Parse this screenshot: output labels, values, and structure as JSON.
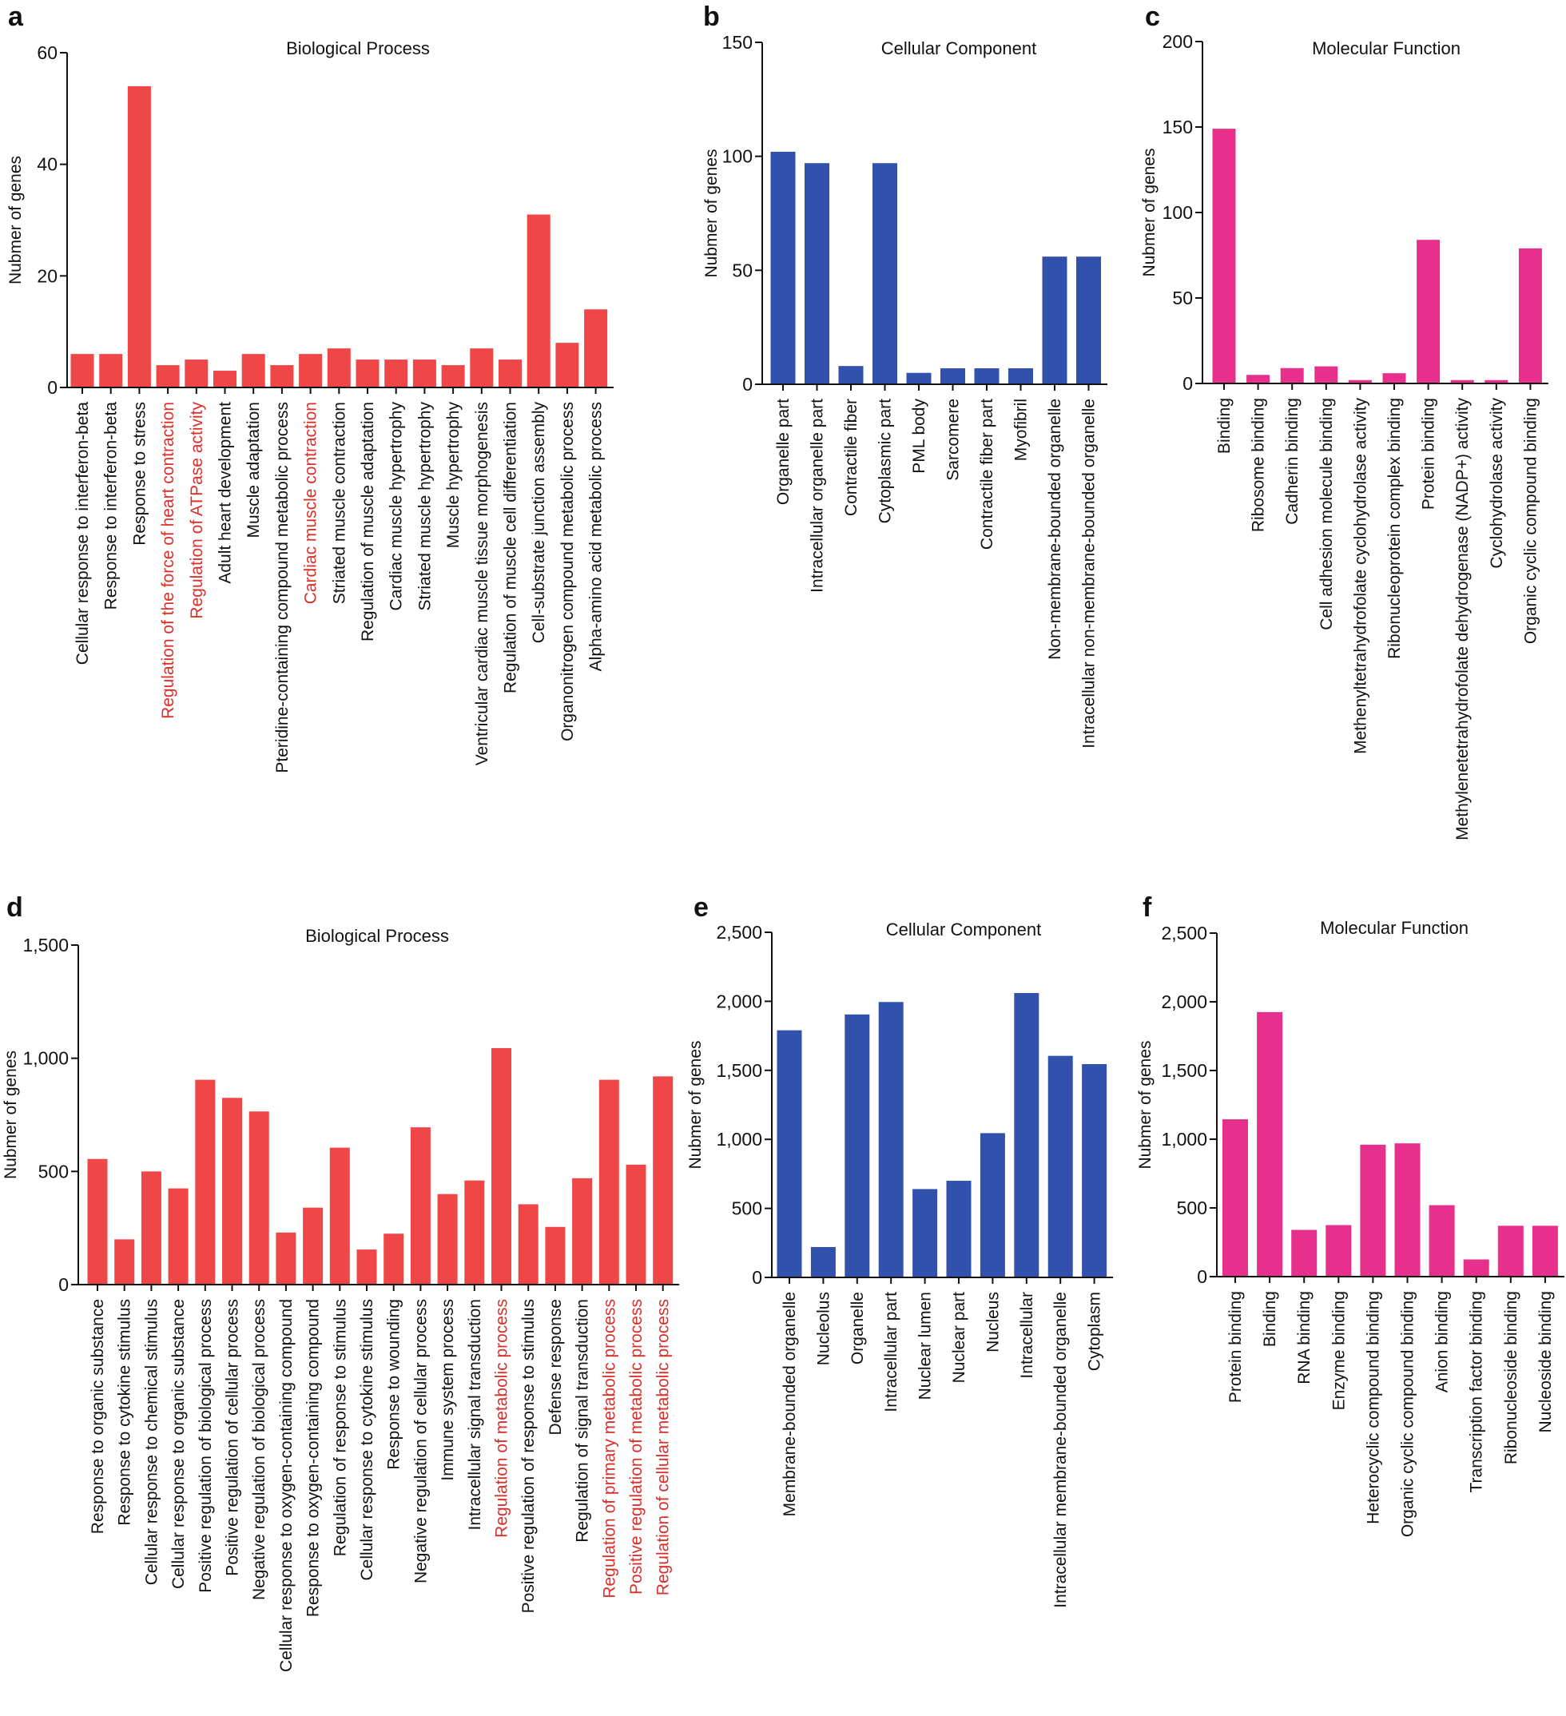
{
  "colors": {
    "red": "#ef4748",
    "blue": "#3251ad",
    "pink": "#e6308b",
    "highlight_text": "#d9302b",
    "text": "#111111"
  },
  "chart_data": [
    {
      "panel": "a",
      "type": "bar",
      "title": "Biological Process",
      "ylabel": "Nubmer of genes",
      "ylim": [
        0,
        60
      ],
      "yticks": [
        0,
        20,
        40,
        60
      ],
      "ytick_labels": [
        "0",
        "20",
        "40",
        "60"
      ],
      "color": "red",
      "categories": [
        "Cellular response to interferon-beta",
        "Response to interferon-beta",
        "Response to stress",
        "Regulation of the force of heart contraction",
        "Regulation of ATPase activity",
        "Adult heart development",
        "Muscle adaptation",
        "Pteridine-containing compound metabolic process",
        "Cardiac muscle contraction",
        "Striated muscle contraction",
        "Regulation of muscle adaptation",
        "Cardiac muscle hypertrophy",
        "Striated muscle hypertrophy",
        "Muscle hypertrophy",
        "Ventricular cardiac muscle tissue morphogenesis",
        "Regulation of muscle cell differentiation",
        "Cell-substrate junction assembly",
        "Organonitrogen compound metabolic process",
        "Alpha-amino acid metabolic process"
      ],
      "values": [
        6,
        6,
        54,
        4,
        5,
        3,
        6,
        4,
        6,
        7,
        5,
        5,
        5,
        4,
        7,
        5,
        31,
        8,
        14
      ],
      "highlighted": [
        false,
        false,
        false,
        true,
        true,
        false,
        false,
        false,
        true,
        false,
        false,
        false,
        false,
        false,
        false,
        false,
        false,
        false,
        false
      ]
    },
    {
      "panel": "b",
      "type": "bar",
      "title": "Cellular Component",
      "ylabel": "Nubmer of genes",
      "ylim": [
        0,
        150
      ],
      "yticks": [
        0,
        50,
        100,
        150
      ],
      "ytick_labels": [
        "0",
        "50",
        "100",
        "150"
      ],
      "color": "blue",
      "categories": [
        "Organelle part",
        "Intracellular organelle part",
        "Contractile fiber",
        "Cytoplasmic part",
        "PML body",
        "Sarcomere",
        "Contractile fiber part",
        "Myofibril",
        "Non-membrane-bounded organelle",
        "Intracellular non-membrane-bounded organelle"
      ],
      "values": [
        102,
        97,
        8,
        97,
        5,
        7,
        7,
        7,
        56,
        56
      ],
      "highlighted": [
        false,
        false,
        false,
        false,
        false,
        false,
        false,
        false,
        false,
        false
      ]
    },
    {
      "panel": "c",
      "type": "bar",
      "title": "Molecular Function",
      "ylabel": "Nubmer of genes",
      "ylim": [
        0,
        200
      ],
      "yticks": [
        0,
        50,
        100,
        150,
        200
      ],
      "ytick_labels": [
        "0",
        "50",
        "100",
        "150",
        "200"
      ],
      "color": "pink",
      "categories": [
        "Binding",
        "Ribosome binding",
        "Cadherin binding",
        "Cell adhesion molecule binding",
        "Methenyltetrahydrofolate cyclohydrolase activity",
        "Ribonucleoprotein complex binding",
        "Protein binding",
        "Methylenetetrahydrofolate dehydrogenase (NADP+) activity",
        "Cyclohydrolase activity",
        "Organic cyclic compound binding"
      ],
      "values": [
        149,
        5,
        9,
        10,
        2,
        6,
        84,
        2,
        2,
        79
      ],
      "highlighted": [
        false,
        false,
        false,
        false,
        false,
        false,
        false,
        false,
        false,
        false
      ]
    },
    {
      "panel": "d",
      "type": "bar",
      "title": "Biological Process",
      "ylabel": "Nubmer of genes",
      "ylim": [
        0,
        1500
      ],
      "yticks": [
        0,
        500,
        1000,
        1500
      ],
      "ytick_labels": [
        "0",
        "500",
        "1,000",
        "1,500"
      ],
      "color": "red",
      "categories": [
        "Response to organic substance",
        "Response to cytokine stimulus",
        "Cellular response to chemical stimulus",
        "Cellular response to organic substance",
        "Positive regulation of biological process",
        "Positive regulation of cellular process",
        "Negative regulation of biological process",
        "Cellular response to oxygen-containing compound",
        "Response to oxygen-containing compound",
        "Regulation of response to stimulus",
        "Cellular response to cytokine stimulus",
        "Response to wounding",
        "Negative regulation of cellular process",
        "Immune system process",
        "Intracellular signal transduction",
        "Regulation of metabolic process",
        "Positive regulation of response to stimulus",
        "Defense response",
        "Regulation of signal transduction",
        "Regulation of primary metabolic process",
        "Positive regulation of metabolic process",
        "Regulation of cellular metabolic process"
      ],
      "values": [
        555,
        200,
        500,
        425,
        905,
        825,
        765,
        230,
        340,
        605,
        155,
        225,
        695,
        400,
        460,
        1045,
        355,
        255,
        470,
        905,
        530,
        920
      ],
      "highlighted": [
        false,
        false,
        false,
        false,
        false,
        false,
        false,
        false,
        false,
        false,
        false,
        false,
        false,
        false,
        false,
        true,
        false,
        false,
        false,
        true,
        true,
        true
      ]
    },
    {
      "panel": "e",
      "type": "bar",
      "title": "Cellular Component",
      "ylabel": "Nubmer of genes",
      "ylim": [
        0,
        2500
      ],
      "yticks": [
        0,
        500,
        1000,
        1500,
        2000,
        2500
      ],
      "ytick_labels": [
        "0",
        "500",
        "1,000",
        "1,500",
        "2,000",
        "2,500"
      ],
      "color": "blue",
      "categories": [
        "Membrane-bounded organelle",
        "Nucleolus",
        "Organelle",
        "Intracellular part",
        "Nuclear lumen",
        "Nuclear part",
        "Nucleus",
        "Intracellular",
        "Intracellular membrane-bounded organelle",
        "Cytoplasm"
      ],
      "values": [
        1790,
        220,
        1905,
        1995,
        640,
        700,
        1045,
        2060,
        1605,
        1545
      ],
      "highlighted": [
        false,
        false,
        false,
        false,
        false,
        false,
        false,
        false,
        false,
        false
      ]
    },
    {
      "panel": "f",
      "type": "bar",
      "title": "Molecular Function",
      "ylabel": "Nubmer of genes",
      "ylim": [
        0,
        2500
      ],
      "yticks": [
        0,
        500,
        1000,
        1500,
        2000,
        2500
      ],
      "ytick_labels": [
        "0",
        "500",
        "1,000",
        "1,500",
        "2,000",
        "2,500"
      ],
      "color": "pink",
      "categories": [
        "Protein binding",
        "Binding",
        "RNA binding",
        "Enzyme binding",
        "Heterocyclic compound binding",
        "Organic cyclic compound binding",
        "Anion binding",
        "Transcription factor binding",
        "Ribonucleoside binding",
        "Nucleoside binding"
      ],
      "values": [
        1145,
        1925,
        340,
        375,
        960,
        970,
        520,
        125,
        370,
        370
      ],
      "highlighted": [
        false,
        false,
        false,
        false,
        false,
        false,
        false,
        false,
        false,
        false
      ]
    }
  ]
}
